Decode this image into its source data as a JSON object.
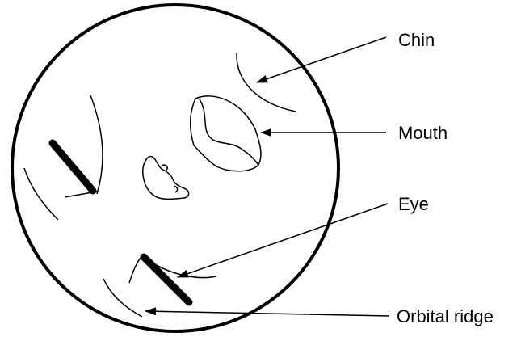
{
  "labels": {
    "chin": "Chin",
    "mouth": "Mouth",
    "eye": "Eye",
    "orbital_ridge": "Orbital ridge"
  },
  "colors": {
    "stroke": "#000000",
    "background": "#ffffff"
  }
}
